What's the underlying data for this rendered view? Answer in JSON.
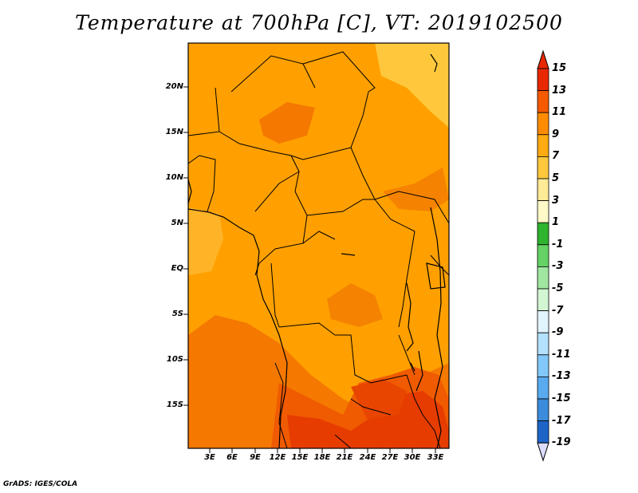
{
  "title": "Temperature at 700hPa [C], VT: 2019102500",
  "credit": "GrADS: IGES/COLA",
  "map": {
    "lat_labels": [
      "20N",
      "15N",
      "10N",
      "5N",
      "EQ",
      "5S",
      "10S",
      "15S"
    ],
    "lon_labels": [
      "3E",
      "6E",
      "9E",
      "12E",
      "15E",
      "18E",
      "21E",
      "24E",
      "27E",
      "30E",
      "33E"
    ],
    "base_color": "#ffa000",
    "border_color": "#000000"
  },
  "colorbar": {
    "labels": [
      "15",
      "13",
      "11",
      "9",
      "7",
      "5",
      "3",
      "1",
      "-1",
      "-3",
      "-5",
      "-7",
      "-9",
      "-11",
      "-13",
      "-15",
      "-17",
      "-19"
    ],
    "colors": [
      "#e82800",
      "#f55a00",
      "#ff8c00",
      "#ffaa10",
      "#ffc83c",
      "#ffea96",
      "#fffac8",
      "#2eb42e",
      "#64d264",
      "#a0e6a0",
      "#d2f5d2",
      "#e1f5ff",
      "#b4e1ff",
      "#82c8fa",
      "#5aaaf0",
      "#3c8cdc",
      "#1e64c8",
      "#0032a0",
      "#000a6e"
    ],
    "top_cap_color": "#e82800",
    "bottom_cap_color": "#dcdcff"
  }
}
